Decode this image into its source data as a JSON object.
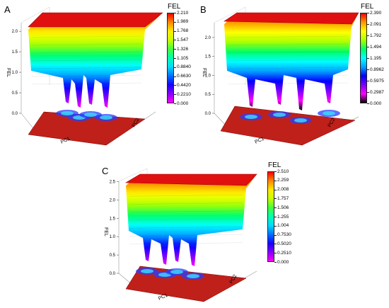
{
  "panels": [
    {
      "letter": "A",
      "zlabel": "FEL",
      "xlabel": "PC1",
      "ylabel": "PC2",
      "z_ticks": [
        "0.0",
        "0.5",
        "1.0",
        "1.5",
        "2.0"
      ],
      "legend_title": "FEL",
      "legend_labels": [
        "2.210",
        "1.989",
        "1.768",
        "1.547",
        "1.326",
        "1.105",
        "0.8840",
        "0.6630",
        "0.4420",
        "0.2210",
        "0.000"
      ]
    },
    {
      "letter": "B",
      "zlabel": "FEL",
      "xlabel": "PC1",
      "ylabel": "PC2",
      "z_ticks": [
        "0.0",
        "0.5",
        "1.0",
        "1.5",
        "2.0"
      ],
      "legend_title": "FEL",
      "legend_labels": [
        "2.390",
        "2.091",
        "1.792",
        "1.494",
        "1.195",
        "0.8962",
        "0.5975",
        "0.2987",
        "0.000"
      ]
    },
    {
      "letter": "C",
      "zlabel": "FEL",
      "xlabel": "PC1",
      "ylabel": "PC2",
      "z_ticks": [
        "0.0",
        "0.5",
        "1.0",
        "1.5",
        "2.0",
        "2.5"
      ],
      "legend_title": "FEL",
      "legend_labels": [
        "2.510",
        "2.259",
        "2.008",
        "1.757",
        "1.506",
        "1.255",
        "1.004",
        "0.7530",
        "0.5020",
        "0.2510",
        "0.000"
      ]
    }
  ],
  "chart_data": [
    {
      "type": "surface3d",
      "panel": "A",
      "zlabel": "FEL",
      "xlabel": "PC1",
      "ylabel": "PC2",
      "zlim": [
        0,
        2.21
      ],
      "colorscale": [
        "#ff00ff",
        "#7a00ff",
        "#0000ff",
        "#00a0ff",
        "#00ffff",
        "#00ff66",
        "#aaff00",
        "#ffff00",
        "#ff9900",
        "#ff0000"
      ],
      "legend_title": "FEL",
      "legend_values": [
        2.21,
        1.989,
        1.768,
        1.547,
        1.326,
        1.105,
        0.884,
        0.663,
        0.442,
        0.221,
        0.0
      ]
    },
    {
      "type": "surface3d",
      "panel": "B",
      "zlabel": "FEL",
      "xlabel": "PC1",
      "ylabel": "PC2",
      "zlim": [
        0,
        2.39
      ],
      "colorscale": [
        "#000000",
        "#ff00ff",
        "#7a00ff",
        "#0000ff",
        "#00a0ff",
        "#00ffff",
        "#00ff66",
        "#aaff00",
        "#ffff00",
        "#ff9900",
        "#ff0000"
      ],
      "legend_title": "FEL",
      "legend_values": [
        2.39,
        2.091,
        1.792,
        1.494,
        1.195,
        0.8962,
        0.5975,
        0.2987,
        0.0
      ]
    },
    {
      "type": "surface3d",
      "panel": "C",
      "zlabel": "FEL",
      "xlabel": "PC1",
      "ylabel": "PC2",
      "zlim": [
        0,
        2.51
      ],
      "colorscale": [
        "#ff00ff",
        "#7a00ff",
        "#0000ff",
        "#00a0ff",
        "#00ffff",
        "#00ff66",
        "#aaff00",
        "#ffff00",
        "#ff9900",
        "#ff0000"
      ],
      "legend_title": "FEL",
      "legend_values": [
        2.51,
        2.259,
        2.008,
        1.757,
        1.506,
        1.255,
        1.004,
        0.753,
        0.502,
        0.251,
        0.0
      ]
    }
  ]
}
